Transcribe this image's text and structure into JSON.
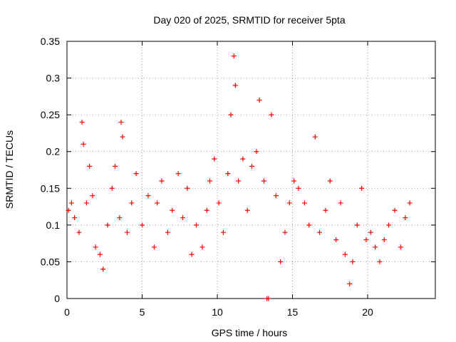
{
  "chart_data": {
    "type": "scatter",
    "title": "Day 020 of 2025, SRMTID for receiver 5pta",
    "xlabel": "GPS time / hours",
    "ylabel": "SRMTID / TECUs",
    "xlim": [
      0,
      24.5
    ],
    "ylim": [
      0,
      0.35
    ],
    "x_ticks": [
      0,
      5,
      10,
      15,
      20
    ],
    "x_tick_labels": [
      "0",
      "5",
      "10",
      "15",
      "20"
    ],
    "y_ticks": [
      0,
      0.05,
      0.1,
      0.15,
      0.2,
      0.25,
      0.3,
      0.35
    ],
    "y_tick_labels": [
      "0",
      "0.05",
      "0.1",
      "0.15",
      "0.2",
      "0.25",
      "0.3",
      "0.35"
    ],
    "grid": true,
    "marker": "plus",
    "marker_color": "#ff0000",
    "series": [
      {
        "name": "SRMTID",
        "points": [
          [
            0.1,
            0.12
          ],
          [
            0.3,
            0.13
          ],
          [
            0.5,
            0.11
          ],
          [
            0.8,
            0.09
          ],
          [
            1.0,
            0.24
          ],
          [
            1.1,
            0.21
          ],
          [
            1.3,
            0.13
          ],
          [
            1.5,
            0.18
          ],
          [
            1.7,
            0.14
          ],
          [
            1.9,
            0.07
          ],
          [
            2.2,
            0.06
          ],
          [
            2.4,
            0.04
          ],
          [
            2.7,
            0.1
          ],
          [
            3.0,
            0.15
          ],
          [
            3.2,
            0.18
          ],
          [
            3.5,
            0.11
          ],
          [
            3.6,
            0.24
          ],
          [
            3.7,
            0.22
          ],
          [
            4.0,
            0.09
          ],
          [
            4.3,
            0.13
          ],
          [
            4.6,
            0.17
          ],
          [
            5.0,
            0.1
          ],
          [
            5.4,
            0.14
          ],
          [
            5.8,
            0.07
          ],
          [
            6.0,
            0.13
          ],
          [
            6.3,
            0.16
          ],
          [
            6.7,
            0.09
          ],
          [
            7.0,
            0.12
          ],
          [
            7.4,
            0.17
          ],
          [
            7.7,
            0.11
          ],
          [
            8.0,
            0.15
          ],
          [
            8.3,
            0.06
          ],
          [
            8.6,
            0.1
          ],
          [
            9.0,
            0.07
          ],
          [
            9.3,
            0.12
          ],
          [
            9.5,
            0.16
          ],
          [
            9.8,
            0.19
          ],
          [
            10.1,
            0.13
          ],
          [
            10.4,
            0.09
          ],
          [
            10.7,
            0.17
          ],
          [
            10.9,
            0.25
          ],
          [
            11.1,
            0.33
          ],
          [
            11.2,
            0.29
          ],
          [
            11.4,
            0.16
          ],
          [
            11.7,
            0.19
          ],
          [
            12.0,
            0.12
          ],
          [
            12.3,
            0.18
          ],
          [
            12.6,
            0.2
          ],
          [
            12.8,
            0.27
          ],
          [
            13.1,
            0.16
          ],
          [
            13.3,
            0.0
          ],
          [
            13.4,
            0.0
          ],
          [
            13.6,
            0.25
          ],
          [
            13.9,
            0.14
          ],
          [
            14.2,
            0.05
          ],
          [
            14.5,
            0.09
          ],
          [
            14.8,
            0.13
          ],
          [
            15.1,
            0.16
          ],
          [
            15.4,
            0.15
          ],
          [
            15.8,
            0.13
          ],
          [
            16.1,
            0.1
          ],
          [
            16.5,
            0.22
          ],
          [
            16.8,
            0.09
          ],
          [
            17.2,
            0.12
          ],
          [
            17.5,
            0.16
          ],
          [
            17.9,
            0.08
          ],
          [
            18.2,
            0.13
          ],
          [
            18.5,
            0.06
          ],
          [
            18.8,
            0.02
          ],
          [
            19.0,
            0.05
          ],
          [
            19.3,
            0.1
          ],
          [
            19.6,
            0.15
          ],
          [
            19.9,
            0.08
          ],
          [
            20.2,
            0.09
          ],
          [
            20.5,
            0.07
          ],
          [
            20.8,
            0.05
          ],
          [
            21.1,
            0.08
          ],
          [
            21.4,
            0.1
          ],
          [
            21.8,
            0.12
          ],
          [
            22.2,
            0.07
          ],
          [
            22.5,
            0.11
          ],
          [
            22.8,
            0.13
          ]
        ]
      }
    ]
  }
}
